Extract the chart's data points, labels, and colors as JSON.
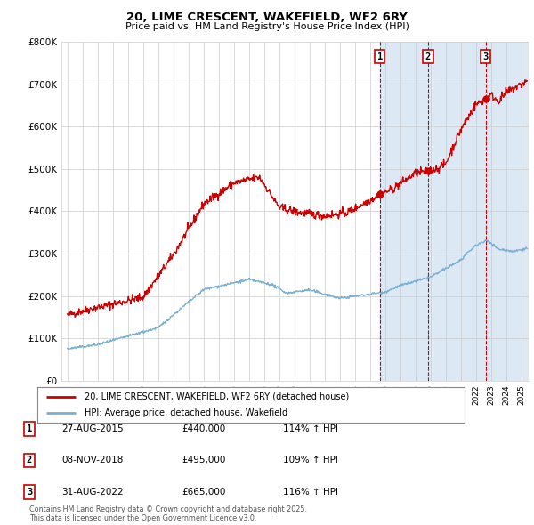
{
  "title_line1": "20, LIME CRESCENT, WAKEFIELD, WF2 6RY",
  "title_line2": "Price paid vs. HM Land Registry's House Price Index (HPI)",
  "background_color": "#ffffff",
  "plot_bg_color": "#ffffff",
  "grid_color": "#cccccc",
  "red_line_color": "#cc0000",
  "blue_line_color": "#7ab0d4",
  "shade_color": "#dce9f5",
  "ylim_min": 0,
  "ylim_max": 800000,
  "yticks": [
    0,
    100000,
    200000,
    300000,
    400000,
    500000,
    600000,
    700000,
    800000
  ],
  "ytick_labels": [
    "£0",
    "£100K",
    "£200K",
    "£300K",
    "£400K",
    "£500K",
    "£600K",
    "£700K",
    "£800K"
  ],
  "xlim_min": 1994.6,
  "xlim_max": 2025.5,
  "sale_dates": [
    2015.65,
    2018.84,
    2022.66
  ],
  "sale_prices": [
    440000,
    495000,
    665000
  ],
  "sale_labels": [
    "1",
    "2",
    "3"
  ],
  "annotation_table": [
    [
      "1",
      "27-AUG-2015",
      "£440,000",
      "114% ↑ HPI"
    ],
    [
      "2",
      "08-NOV-2018",
      "£495,000",
      "109% ↑ HPI"
    ],
    [
      "3",
      "31-AUG-2022",
      "£665,000",
      "116% ↑ HPI"
    ]
  ],
  "legend_line1": "20, LIME CRESCENT, WAKEFIELD, WF2 6RY (detached house)",
  "legend_line2": "HPI: Average price, detached house, Wakefield",
  "footer": "Contains HM Land Registry data © Crown copyright and database right 2025.\nThis data is licensed under the Open Government Licence v3.0."
}
